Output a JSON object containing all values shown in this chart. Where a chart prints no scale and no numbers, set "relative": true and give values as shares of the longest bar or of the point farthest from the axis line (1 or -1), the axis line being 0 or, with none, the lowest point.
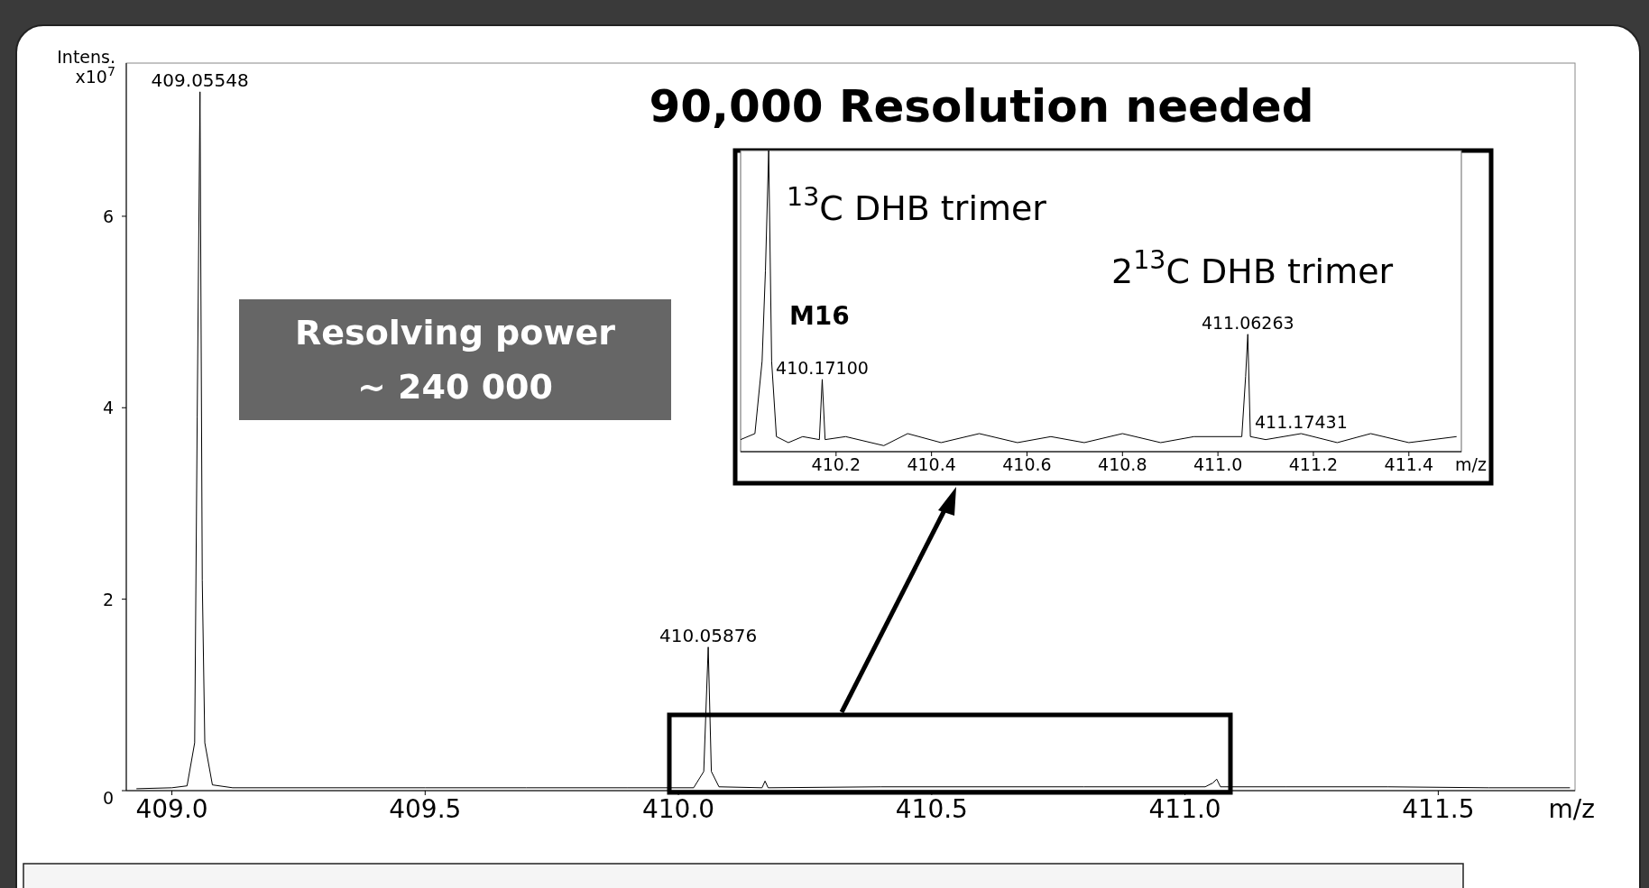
{
  "chart_data": [
    {
      "type": "line",
      "title": "90,000 Resolution needed",
      "xlabel": "m/z",
      "ylabel": "Intens.\nx10$^{7}$",
      "xlim": [
        408.91,
        411.77
      ],
      "xticks": [
        {
          "value": 409,
          "label": "409.0"
        },
        409.5,
        {
          "value": 410,
          "label": "410.0"
        },
        410.5,
        {
          "value": 411,
          "label": "411.0"
        },
        411.5
      ],
      "ylim": [
        0,
        7.6
      ],
      "yticks": [
        0,
        2,
        4,
        6
      ],
      "series": [
        {
          "color": "#000000",
          "x": [
            408.93,
            409.0,
            409.03,
            409.045,
            409.05,
            409.0555,
            409.06,
            409.065,
            409.08,
            409.12,
            409.3,
            409.5,
            409.7,
            409.9,
            410.03,
            410.05,
            410.0588,
            410.065,
            410.08,
            410.165,
            410.171,
            410.177,
            410.4,
            410.6,
            410.8,
            411.04,
            411.055,
            411.0626,
            411.07,
            411.2,
            411.4,
            411.6,
            411.76
          ],
          "values": [
            0.02,
            0.03,
            0.05,
            0.5,
            3.9,
            7.3,
            2.2,
            0.5,
            0.06,
            0.03,
            0.03,
            0.03,
            0.03,
            0.03,
            0.03,
            0.2,
            1.5,
            0.2,
            0.04,
            0.03,
            0.1,
            0.03,
            0.04,
            0.04,
            0.04,
            0.04,
            0.08,
            0.12,
            0.04,
            0.04,
            0.04,
            0.03,
            0.03
          ]
        }
      ],
      "annotations": [
        "Resolving power\n~ 240 000",
        {
          "text": "409.05548",
          "x": 409.05548,
          "y": 7.3
        },
        {
          "text": "410.05876",
          "x": 410.05876,
          "y": 1.5
        }
      ]
    },
    {
      "type": "line",
      "relative": true,
      "tick_labels": "x",
      "xlabel": "m/z",
      "xlim": [
        410.0,
        411.51
      ],
      "xticks": [
        410.2,
        410.4,
        410.6,
        410.8,
        {
          "value": 411,
          "label": "411.0"
        },
        411.2,
        411.4
      ],
      "series": [
        {
          "color": "#000000",
          "x": [
            410.0,
            410.03,
            410.045,
            410.052,
            410.0588,
            410.065,
            410.075,
            410.1,
            410.13,
            410.165,
            410.171,
            410.177,
            410.22,
            410.3,
            410.35,
            410.42,
            410.5,
            410.58,
            410.65,
            410.72,
            410.8,
            410.88,
            410.95,
            411.05,
            411.058,
            411.0626,
            411.068,
            411.1,
            411.17431,
            411.25,
            411.32,
            411.4,
            411.5
          ],
          "values": [
            0.04,
            0.06,
            0.3,
            0.6,
            1,
            0.3,
            0.05,
            0.03,
            0.05,
            0.04,
            0.24,
            0.04,
            0.05,
            0.02,
            0.06,
            0.03,
            0.06,
            0.03,
            0.05,
            0.03,
            0.06,
            0.03,
            0.05,
            0.05,
            0.25,
            0.39,
            0.05,
            0.04,
            0.06,
            0.03,
            0.06,
            0.03,
            0.05
          ]
        }
      ],
      "annotations": [
        "$^{13}$C DHB trimer",
        "2$^{13}$C DHB trimer",
        "M16",
        {
          "text": "410.17100",
          "x": 410.171,
          "y": 0.24
        },
        {
          "text": "411.06263",
          "x": 411.06263,
          "y": 0.39
        },
        {
          "text": "411.17431",
          "x": 411.17431,
          "y": 0.06
        }
      ]
    }
  ]
}
